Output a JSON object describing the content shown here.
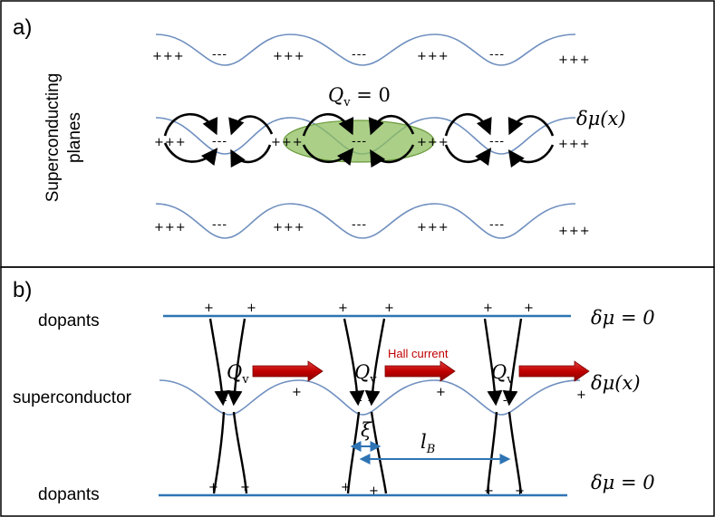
{
  "panel_a": {
    "label": "a)",
    "side_label_line1": "Superconducting",
    "side_label_line2": "planes",
    "qv_label": "Q",
    "qv_sub": "v",
    "qv_eq": " = 0",
    "delta_mu": "δμ(x)",
    "plus": "+++",
    "minus": "---"
  },
  "panel_b": {
    "label": "b)",
    "dopants_top": "dopants",
    "dopants_bottom": "dopants",
    "superconductor": "superconductor",
    "hall_current": "Hall current",
    "qv": "Q",
    "qv_sub": "v",
    "delta_mu_zero_top": "δμ = 0",
    "delta_mu_zero_bottom": "δμ = 0",
    "delta_mu_x": "δμ(x)",
    "xi": "ξ",
    "l_b": "l",
    "l_b_sub": "B",
    "plus": "+",
    "minus": "- -"
  },
  "colors": {
    "wave": "#6f8fbf",
    "blue_line": "#2e74b5",
    "green_fill": "#8fbf5f",
    "arrow_red": "#c00000",
    "hall_text": "#c00000"
  }
}
